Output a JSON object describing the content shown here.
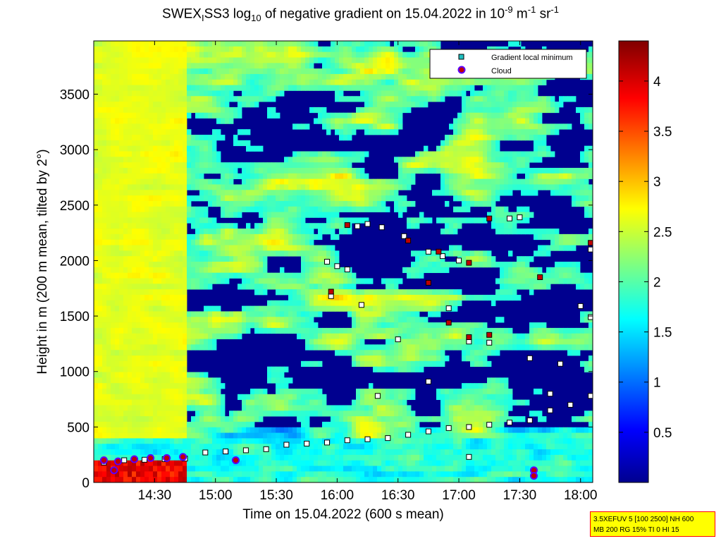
{
  "title": {
    "prefix": "SWEX",
    "sub1": "I",
    "mid": "SS3 log",
    "sub2": "10",
    "after": " of negative gradient on 15.04.2022 in 10",
    "sup1": "-9",
    "m": " m",
    "sup2": "-1",
    "sr": " sr",
    "sup3": "-1"
  },
  "info_box": {
    "line1": "3.5XEFUV 5 [100 2500] NH 600",
    "line2": "MB 200 RG 15% TI 0 HI 15"
  },
  "colors": {
    "background_low": "#00008f",
    "marker_local_min": "#20c0c0",
    "marker_cloud": "#c00000",
    "marker_cloud_edge": "#5a00ff"
  },
  "chart_data": {
    "type": "heatmap",
    "xlabel": "Time on 15.04.2022 (600 s mean)",
    "ylabel": "Height in m (200 m mean, tilted by 2°)",
    "x_ticks": [
      "14:30",
      "15:00",
      "15:30",
      "16:00",
      "16:30",
      "17:00",
      "17:30",
      "18:00"
    ],
    "y_ticks": [
      "0",
      "500",
      "1000",
      "1500",
      "2000",
      "2500",
      "3000",
      "3500"
    ],
    "x_range_hours": [
      14.0,
      18.1
    ],
    "ylim": [
      0,
      3980
    ],
    "colorbar": {
      "ticks": [
        "0.5",
        "1",
        "1.5",
        "2",
        "2.5",
        "3",
        "3.5",
        "4"
      ],
      "range": [
        0,
        4.4
      ],
      "colormap": "jet"
    },
    "legend": {
      "position": "top-right",
      "entries": [
        "Gradient local minimum",
        "Cloud"
      ]
    },
    "series": [
      {
        "name": "Gradient local minimum",
        "marker": "square",
        "points": [
          {
            "t": "14:05",
            "h": 180
          },
          {
            "t": "14:15",
            "h": 200
          },
          {
            "t": "14:25",
            "h": 205
          },
          {
            "t": "14:35",
            "h": 210
          },
          {
            "t": "14:45",
            "h": 215
          },
          {
            "t": "14:55",
            "h": 270
          },
          {
            "t": "15:05",
            "h": 280
          },
          {
            "t": "15:15",
            "h": 290
          },
          {
            "t": "15:25",
            "h": 300
          },
          {
            "t": "15:35",
            "h": 340
          },
          {
            "t": "15:45",
            "h": 350
          },
          {
            "t": "15:55",
            "h": 360
          },
          {
            "t": "16:05",
            "h": 380
          },
          {
            "t": "16:15",
            "h": 390
          },
          {
            "t": "16:25",
            "h": 400
          },
          {
            "t": "16:35",
            "h": 430
          },
          {
            "t": "16:45",
            "h": 460
          },
          {
            "t": "16:55",
            "h": 490
          },
          {
            "t": "17:05",
            "h": 500
          },
          {
            "t": "17:15",
            "h": 520
          },
          {
            "t": "17:25",
            "h": 540
          },
          {
            "t": "17:35",
            "h": 560
          },
          {
            "t": "17:45",
            "h": 650
          },
          {
            "t": "17:55",
            "h": 700
          },
          {
            "t": "18:05",
            "h": 780
          },
          {
            "t": "15:55",
            "h": 1990
          },
          {
            "t": "16:00",
            "h": 1950
          },
          {
            "t": "16:05",
            "h": 1920
          },
          {
            "t": "15:57",
            "h": 1680
          },
          {
            "t": "16:10",
            "h": 2310
          },
          {
            "t": "16:15",
            "h": 2330
          },
          {
            "t": "16:22",
            "h": 2300
          },
          {
            "t": "16:12",
            "h": 1600
          },
          {
            "t": "16:33",
            "h": 2220
          },
          {
            "t": "16:45",
            "h": 2080
          },
          {
            "t": "16:52",
            "h": 2040
          },
          {
            "t": "17:00",
            "h": 2000
          },
          {
            "t": "17:25",
            "h": 2380
          },
          {
            "t": "17:30",
            "h": 2390
          },
          {
            "t": "16:30",
            "h": 1290
          },
          {
            "t": "16:45",
            "h": 910
          },
          {
            "t": "16:55",
            "h": 1570
          },
          {
            "t": "17:05",
            "h": 1270
          },
          {
            "t": "17:15",
            "h": 1260
          },
          {
            "t": "17:35",
            "h": 1120
          },
          {
            "t": "17:50",
            "h": 1070
          },
          {
            "t": "18:00",
            "h": 1590
          },
          {
            "t": "18:05",
            "h": 2100
          },
          {
            "t": "16:20",
            "h": 780
          },
          {
            "t": "17:05",
            "h": 230
          },
          {
            "t": "17:45",
            "h": 800
          },
          {
            "t": "18:05",
            "h": 1490
          }
        ]
      },
      {
        "name": "Cloud",
        "marker": "circle",
        "points": [
          {
            "t": "14:05",
            "h": 200
          },
          {
            "t": "14:12",
            "h": 190
          },
          {
            "t": "14:20",
            "h": 210
          },
          {
            "t": "14:28",
            "h": 220
          },
          {
            "t": "14:36",
            "h": 220
          },
          {
            "t": "14:44",
            "h": 230
          },
          {
            "t": "14:10",
            "h": 110
          },
          {
            "t": "15:10",
            "h": 200
          },
          {
            "t": "17:37",
            "h": 110
          },
          {
            "t": "17:37",
            "h": 60
          }
        ]
      },
      {
        "name": "Cloud",
        "marker": "square",
        "points": [
          {
            "t": "16:05",
            "h": 2320
          },
          {
            "t": "16:35",
            "h": 2180
          },
          {
            "t": "16:50",
            "h": 2080
          },
          {
            "t": "17:05",
            "h": 1980
          },
          {
            "t": "17:15",
            "h": 2380
          },
          {
            "t": "17:40",
            "h": 1850
          },
          {
            "t": "18:05",
            "h": 2160
          },
          {
            "t": "16:45",
            "h": 1800
          },
          {
            "t": "17:05",
            "h": 1310
          },
          {
            "t": "17:15",
            "h": 1330
          },
          {
            "t": "15:57",
            "h": 1720
          },
          {
            "t": "16:55",
            "h": 1440
          }
        ]
      }
    ]
  }
}
